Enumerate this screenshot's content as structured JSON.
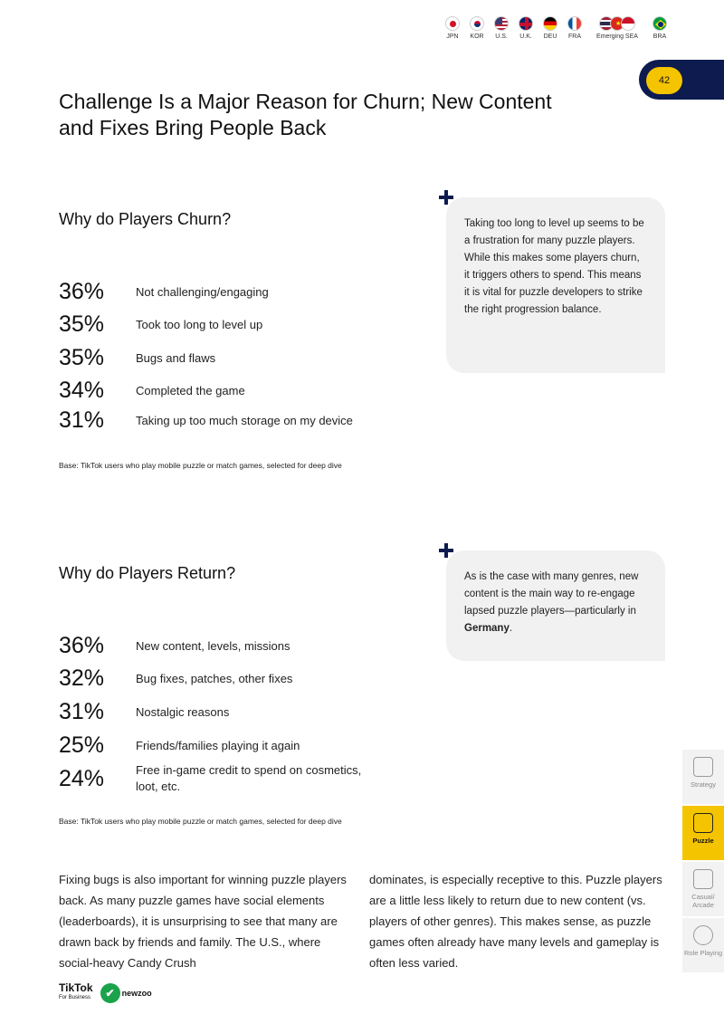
{
  "flags": [
    {
      "label": "JPN",
      "colors": [
        "#ffffff",
        "#d3102a"
      ],
      "icon": "japan-flag-icon"
    },
    {
      "label": "KOR",
      "colors": [
        "#ffffff",
        "#c60c30"
      ],
      "icon": "korea-flag-icon"
    },
    {
      "label": "U.S.",
      "colors": [
        "#b22234",
        "#3c3b6e"
      ],
      "icon": "us-flag-icon"
    },
    {
      "label": "U.K.",
      "colors": [
        "#012169",
        "#c8102e"
      ],
      "icon": "uk-flag-icon"
    },
    {
      "label": "DEU",
      "colors": [
        "#000000",
        "#dd0000",
        "#ffce00"
      ],
      "icon": "germany-flag-icon"
    },
    {
      "label": "FRA",
      "colors": [
        "#0055a4",
        "#ffffff",
        "#ef4135"
      ],
      "icon": "france-flag-icon"
    },
    {
      "label": "Emerging SEA",
      "icon": "emerging-sea-flags-icon"
    },
    {
      "label": "BRA",
      "colors": [
        "#009c3b",
        "#ffdf00"
      ],
      "icon": "brazil-flag-icon"
    }
  ],
  "page_number": "42",
  "title": "Challenge Is a Major Reason for Churn; New Content and Fixes Bring People Back",
  "churn": {
    "heading": "Why do Players Churn?",
    "stats": [
      {
        "pct": "36%",
        "label": "Not challenging/engaging"
      },
      {
        "pct": "35%",
        "label": "Took too long to level up"
      },
      {
        "pct": "35%",
        "label": "Bugs and flaws"
      },
      {
        "pct": "34%",
        "label": "Completed the game"
      },
      {
        "pct": "31%",
        "label": "Taking up too much storage on my device"
      }
    ],
    "base": "Base: TikTok users who play mobile puzzle or match games, selected for deep dive",
    "callout": "Taking too long to level up seems to be a frustration for many puzzle players. While this makes some players churn, it triggers others to spend. This means it is vital for puzzle developers to strike the right progression balance."
  },
  "return": {
    "heading": "Why do Players Return?",
    "stats": [
      {
        "pct": "36%",
        "label": "New content, levels, missions"
      },
      {
        "pct": "32%",
        "label": "Bug fixes, patches, other fixes"
      },
      {
        "pct": "31%",
        "label": "Nostalgic reasons"
      },
      {
        "pct": "25%",
        "label": "Friends/families playing it again"
      },
      {
        "pct": "24%",
        "label": "Free in-game credit to spend on cosmetics, loot, etc."
      }
    ],
    "base": "Base: TikTok users who play mobile puzzle or match games, selected for deep dive",
    "callout_pre": "As is the case with many genres, new content is the main way to re-engage lapsed puzzle players—particularly in ",
    "callout_bold": "Germany",
    "callout_post": "."
  },
  "body_left": "Fixing bugs is also important for winning puzzle players back. As many puzzle games have social elements (leaderboards), it is unsurprising to see that many are drawn back by friends and family. The U.S., where social-heavy Candy Crush",
  "body_right": "dominates, is especially receptive to this. Puzzle players are a little less likely to return due to new content (vs. players of other genres). This makes sense, as puzzle games often already have many levels and gameplay is often less varied.",
  "side_nav": [
    {
      "label": "Strategy",
      "icon": "chess-knight-icon",
      "active": false
    },
    {
      "label": "Puzzle",
      "icon": "puzzle-maze-icon",
      "active": true
    },
    {
      "label": "Casual/ Arcade",
      "icon": "arcade-icon",
      "active": false
    },
    {
      "label": "Role Playing",
      "icon": "potion-icon",
      "active": false
    }
  ],
  "footer": {
    "tiktok": "TikTok",
    "tiktok_sub": "For Business",
    "newzoo": "newzoo"
  },
  "accent_color": "#f5c400",
  "navy_color": "#0d1b4f"
}
